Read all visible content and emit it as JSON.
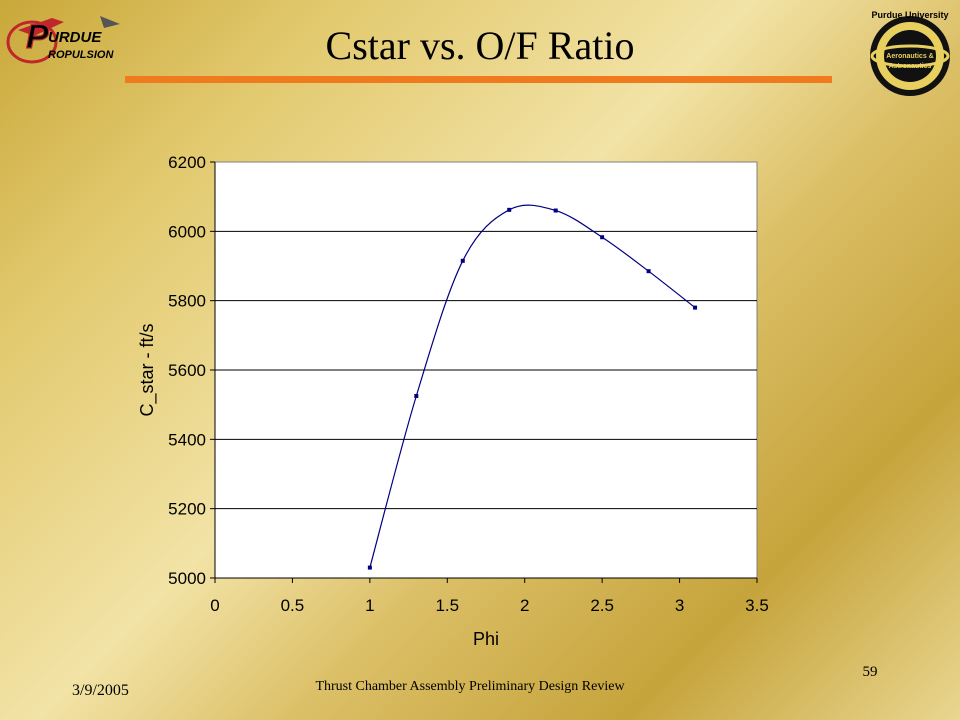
{
  "slide": {
    "title": "Cstar vs. O/F Ratio",
    "footer_date": "3/9/2005",
    "footer_center": "Thrust Chamber Assembly Preliminary Design Review",
    "page_number": "59",
    "logo_left_text": "URDUE ROPULSION",
    "logo_right_text": "Purdue University Aeronautics & Astronautics",
    "accent_color": "#f07a1e"
  },
  "chart_data": {
    "type": "scatter",
    "title": "",
    "xlabel": "Phi",
    "ylabel": "C_star - ft/s",
    "xlim": [
      0,
      3.5
    ],
    "ylim": [
      5000,
      6200
    ],
    "xticks": [
      "0",
      "0.5",
      "1",
      "1.5",
      "2",
      "2.5",
      "3",
      "3.5"
    ],
    "yticks": [
      "5000",
      "5200",
      "5400",
      "5600",
      "5800",
      "6000",
      "6200"
    ],
    "grid": "horizontal",
    "smoothed_line": true,
    "series_color": "#000080",
    "series": [
      {
        "x": [
          1.0,
          1.3,
          1.6,
          1.9,
          2.2,
          2.5,
          2.8,
          3.1
        ],
        "y": [
          5030,
          5525,
          5915,
          6062,
          6060,
          5983,
          5885,
          5780
        ]
      }
    ]
  }
}
